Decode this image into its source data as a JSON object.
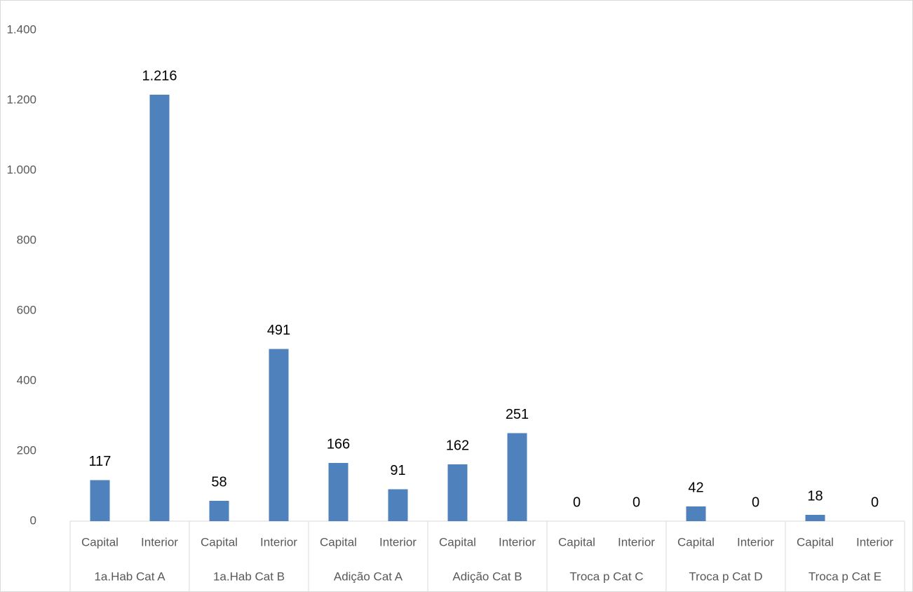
{
  "chart_data": {
    "type": "bar",
    "categories": [
      "Capital",
      "Interior",
      "Capital",
      "Interior",
      "Capital",
      "Interior",
      "Capital",
      "Interior",
      "Capital",
      "Interior",
      "Capital",
      "Interior",
      "Capital",
      "Interior"
    ],
    "groups": [
      "1a.Hab Cat A",
      "1a.Hab Cat B",
      "Adição Cat A",
      "Adição Cat B",
      "Troca p Cat C",
      "Troca p Cat D",
      "Troca p Cat E"
    ],
    "values": [
      117,
      1216,
      58,
      491,
      166,
      91,
      162,
      251,
      0,
      0,
      42,
      0,
      18,
      0
    ],
    "value_labels": [
      "117",
      "1.216",
      "58",
      "491",
      "166",
      "91",
      "162",
      "251",
      "0",
      "0",
      "42",
      "0",
      "18",
      "0"
    ],
    "color": "#4f81bd",
    "ylim": [
      0,
      1400
    ],
    "yticks": [
      0,
      200,
      400,
      600,
      800,
      {
        "value": 1000,
        "label": "1.000"
      },
      {
        "value": 1200,
        "label": "1.200"
      },
      {
        "value": 1400,
        "label": "1.400"
      }
    ],
    "grid": false
  }
}
